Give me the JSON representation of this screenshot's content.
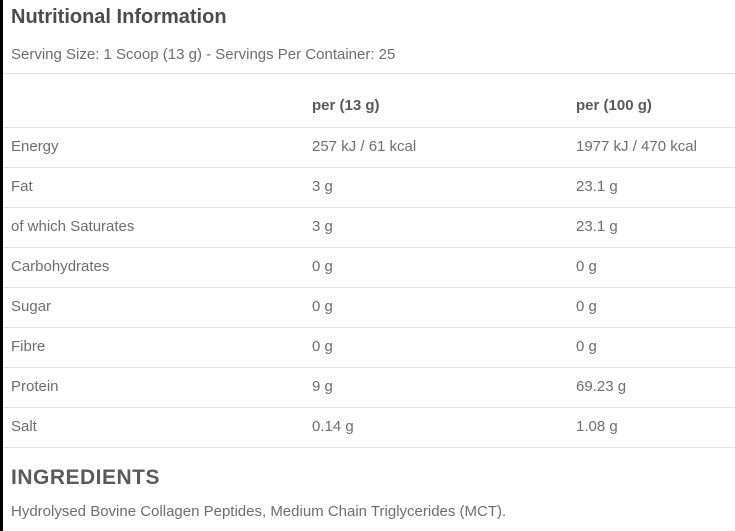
{
  "page": {
    "title": "Nutritional Information",
    "serving_info": "Serving Size: 1 Scoop (13 g) - Servings Per Container: 25"
  },
  "nutrition_table": {
    "columns": {
      "label": "",
      "per_serving": "per (13 g)",
      "per_100g": "per (100 g)"
    },
    "rows": [
      {
        "label": "Energy",
        "per_serving": "257 kJ / 61 kcal",
        "per_100g": "1977 kJ / 470 kcal"
      },
      {
        "label": "Fat",
        "per_serving": "3 g",
        "per_100g": "23.1 g"
      },
      {
        "label": "of which Saturates",
        "per_serving": "3 g",
        "per_100g": "23.1 g"
      },
      {
        "label": "Carbohydrates",
        "per_serving": "0 g",
        "per_100g": "0 g"
      },
      {
        "label": "Sugar",
        "per_serving": "0 g",
        "per_100g": "0 g"
      },
      {
        "label": "Fibre",
        "per_serving": "0 g",
        "per_100g": "0 g"
      },
      {
        "label": "Protein",
        "per_serving": "9 g",
        "per_100g": "69.23 g"
      },
      {
        "label": "Salt",
        "per_serving": "0.14 g",
        "per_100g": "1.08 g"
      }
    ]
  },
  "ingredients": {
    "heading": "INGREDIENTS",
    "text": "Hydrolysed Bovine Collagen Peptides, Medium Chain Triglycerides (MCT)."
  },
  "colors": {
    "background": "#ffffff",
    "heading_text": "#4c4c4e",
    "body_text": "#6d6e71",
    "divider": "#e2e2e2",
    "left_border": "#000000"
  }
}
